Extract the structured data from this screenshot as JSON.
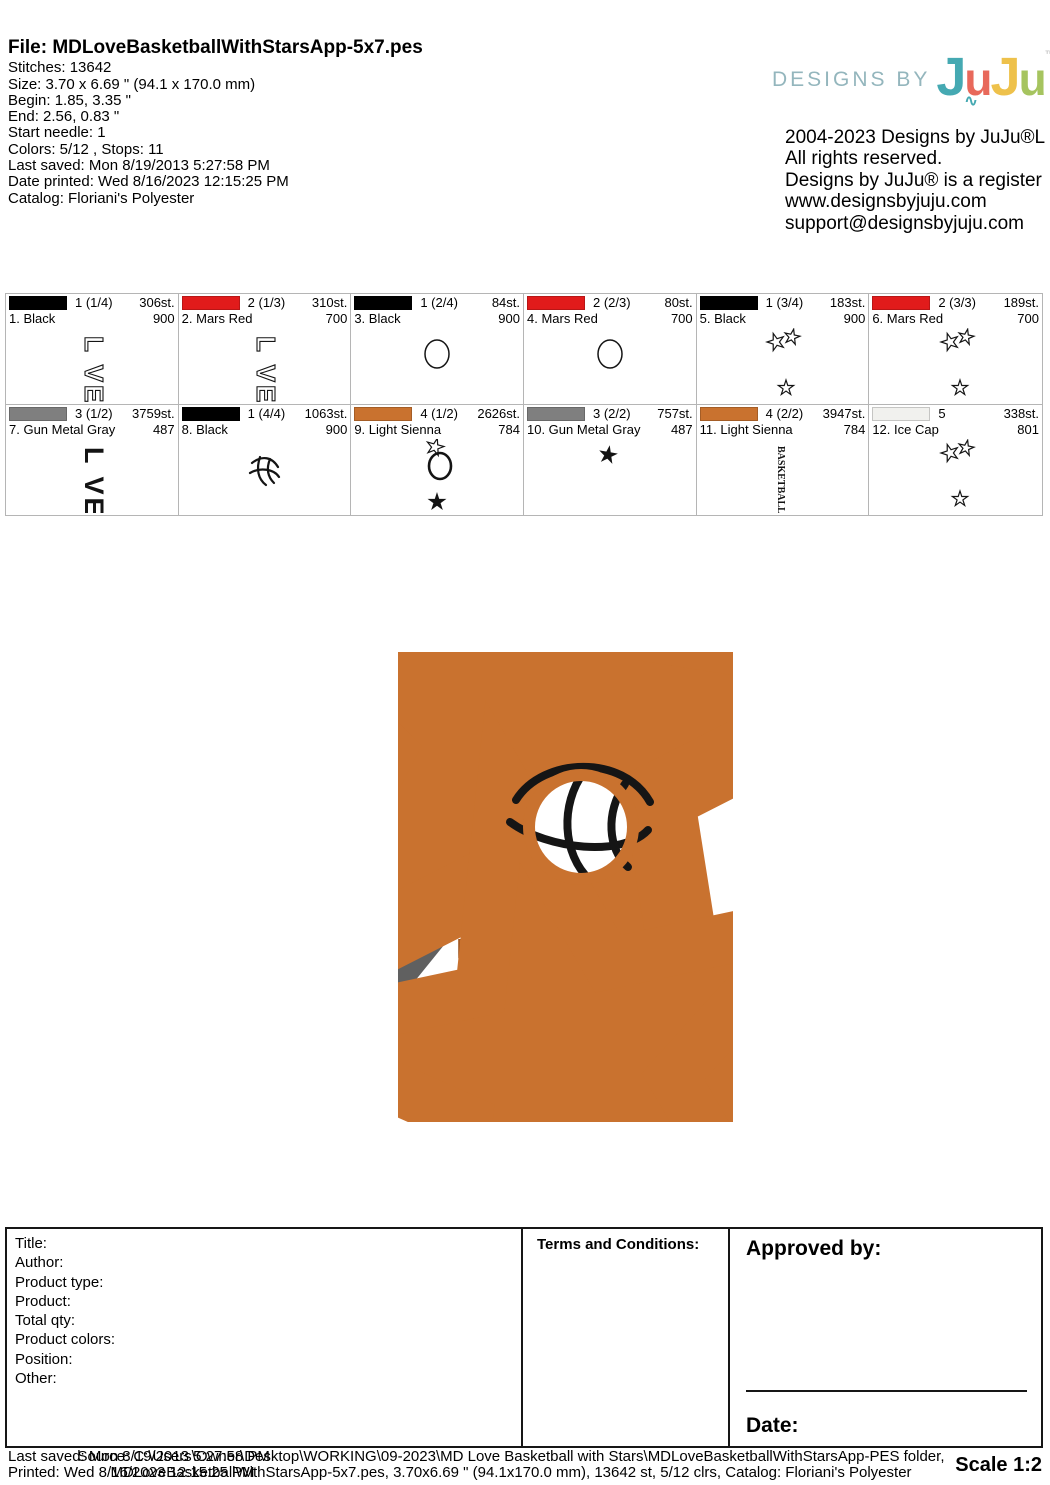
{
  "file_info": {
    "title": "File: MDLoveBasketballWithStarsApp-5x7.pes",
    "lines": [
      "Stitches: 13642",
      "Size: 3.70 x 6.69 \" (94.1 x 170.0 mm)",
      "Begin: 1.85, 3.35 \"",
      "End: 2.56, 0.83 \"",
      "Start needle: 1",
      "Colors: 5/12 , Stops: 11",
      "Last saved: Mon 8/19/2013 5:27:58 PM",
      "Date printed: Wed 8/16/2023 12:15:25 PM",
      "Catalog: Floriani's Polyester"
    ]
  },
  "brand": {
    "designs_by": "DESIGNS BY",
    "letters": [
      {
        "ch": "J",
        "color": "#45a9b2",
        "small": false
      },
      {
        "ch": "u",
        "color": "#e8695b",
        "small": true
      },
      {
        "ch": "J",
        "color": "#eec14b",
        "small": false
      },
      {
        "ch": "u",
        "color": "#a6c45f",
        "small": true
      }
    ],
    "tm": "™",
    "rights": [
      "2004-2023 Designs by JuJu®L",
      "All rights reserved.",
      "Designs by JuJu® is a register",
      "www.designsbyjuju.com",
      "support@designsbyjuju.com"
    ]
  },
  "thread_grid": {
    "cells": [
      {
        "seq": "1 (1/4)",
        "stitches": "306st.",
        "name": "1. Black",
        "code": "900",
        "swatch": "#000000",
        "preview": "letters_outline"
      },
      {
        "seq": "2 (1/3)",
        "stitches": "310st.",
        "name": "2. Mars Red",
        "code": "700",
        "swatch": "#e11b1b",
        "preview": "letters_outline"
      },
      {
        "seq": "1 (2/4)",
        "stitches": "84st.",
        "name": "3. Black",
        "code": "900",
        "swatch": "#000000",
        "preview": "circle_small"
      },
      {
        "seq": "2 (2/3)",
        "stitches": "80st.",
        "name": "4. Mars Red",
        "code": "700",
        "swatch": "#e11b1b",
        "preview": "circle_small"
      },
      {
        "seq": "1 (3/4)",
        "stitches": "183st.",
        "name": "5. Black",
        "code": "900",
        "swatch": "#000000",
        "preview": "three_stars"
      },
      {
        "seq": "2 (3/3)",
        "stitches": "189st.",
        "name": "6. Mars Red",
        "code": "700",
        "swatch": "#e11b1b",
        "preview": "three_stars"
      },
      {
        "seq": "3 (1/2)",
        "stitches": "3759st.",
        "name": "7. Gun Metal Gray",
        "code": "487",
        "swatch": "#7f7f7f",
        "preview": "letters_filled"
      },
      {
        "seq": "1 (4/4)",
        "stitches": "1063st.",
        "name": "8. Black",
        "code": "900",
        "swatch": "#000000",
        "preview": "ball_seams"
      },
      {
        "seq": "4 (1/2)",
        "stitches": "2626st.",
        "name": "9. Light Sienna",
        "code": "784",
        "swatch": "#c9722f",
        "preview": "star_circle_star"
      },
      {
        "seq": "3 (2/2)",
        "stitches": "757st.",
        "name": "10. Gun Metal Gray",
        "code": "487",
        "swatch": "#7f7f7f",
        "preview": "star_filled"
      },
      {
        "seq": "4 (2/2)",
        "stitches": "3947st.",
        "name": "11. Light Sienna",
        "code": "784",
        "swatch": "#c9722f",
        "preview": "vertical_text"
      },
      {
        "seq": "5",
        "stitches": "338st.",
        "name": "12. Ice Cap",
        "code": "801",
        "swatch": "#f1f1ee",
        "preview": "three_stars"
      }
    ]
  },
  "design": {
    "love_l": "L",
    "love_v": "V",
    "love_e": "E",
    "word_basketball": "BASKETBALL",
    "colors": {
      "gray": "#686868",
      "orange": "#c9722f",
      "black": "#151515"
    }
  },
  "form": {
    "fields": [
      "Title:",
      "Author:",
      "Product type:",
      "Product:",
      "Total qty:",
      "Product colors:",
      "Position:",
      "Other:"
    ],
    "terms_label": "Terms and Conditions:",
    "approved_label": "Approved by:",
    "date_label": "Date:"
  },
  "footer": {
    "last_saved": "Last saved: Mon 8/19/2013 5:27:58 PM",
    "printed": "Printed: Wed 8/16/2023 12:15:25 PM",
    "source_line1": "Source: C:\\Users\\Owner\\Desktop\\WORKING\\09-2023\\MD Love Basketball with Stars\\MDLoveBasketballWithStarsApp-PES folder,",
    "source_line2": "MDLoveBasketballWithStarsApp-5x7.pes, 3.70x6.69 \" (94.1x170.0 mm), 13642 st, 5/12 clrs, Catalog: Floriani's Polyester",
    "scale": "Scale 1:2"
  }
}
